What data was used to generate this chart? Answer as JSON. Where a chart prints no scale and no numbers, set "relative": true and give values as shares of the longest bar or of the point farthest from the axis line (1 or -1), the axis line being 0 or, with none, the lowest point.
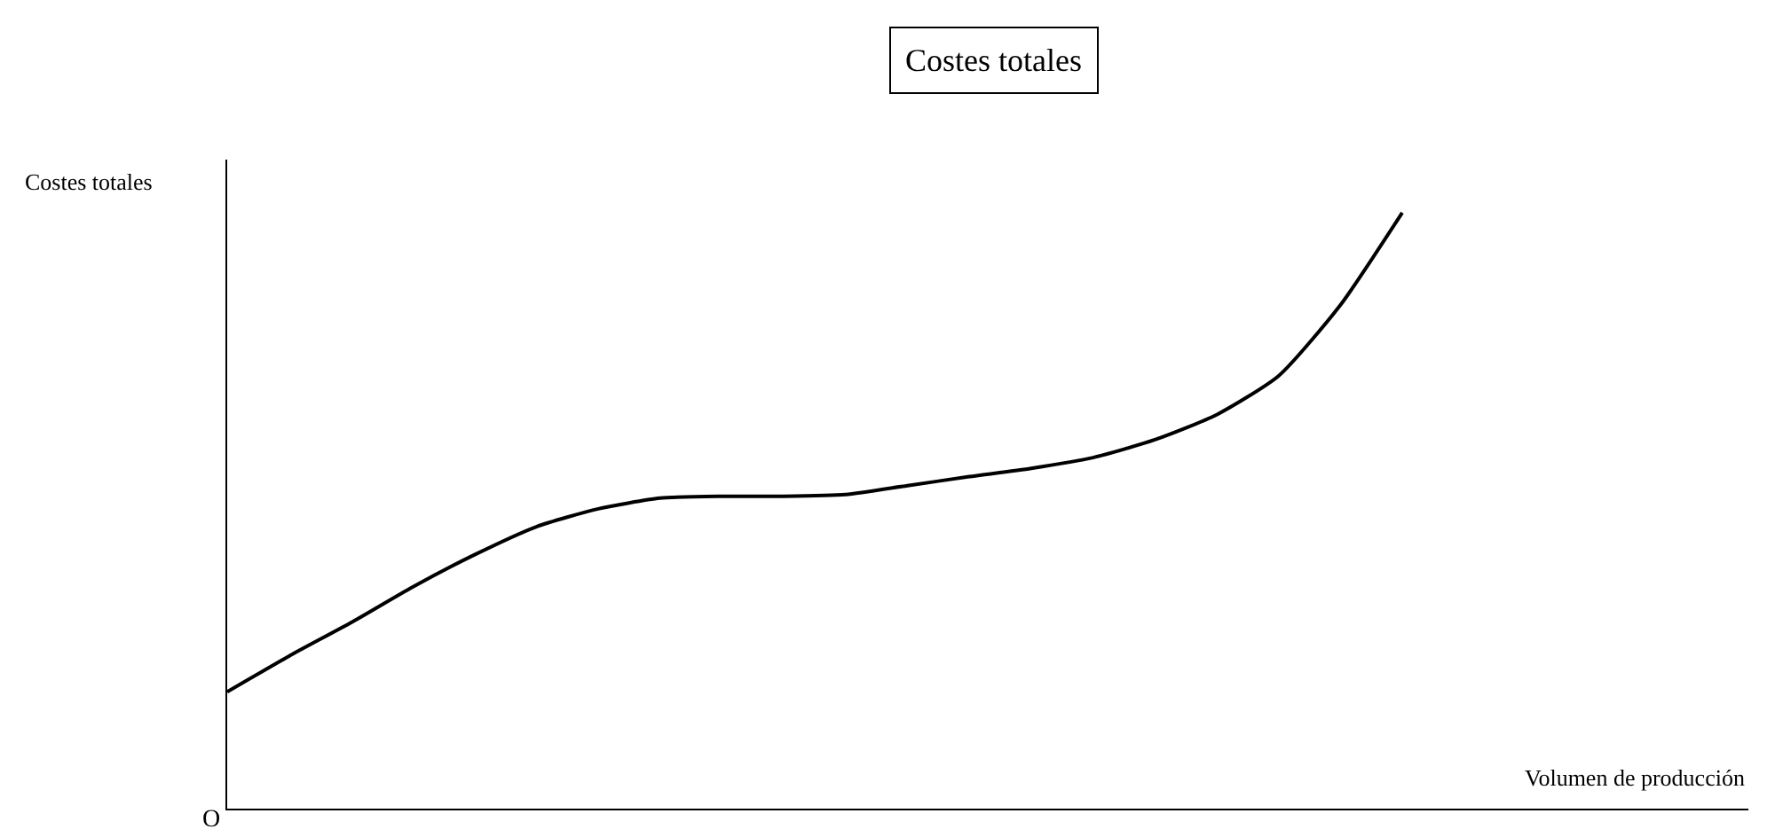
{
  "chart_data": {
    "type": "line",
    "relative": true,
    "title": "Costes totales",
    "xlabel": "Volumen de producción",
    "ylabel": "Costes totales",
    "annotations": [
      "O"
    ],
    "categories": [
      null,
      null,
      null,
      null,
      null,
      null,
      null,
      null,
      null,
      null,
      null,
      null,
      null,
      null,
      null,
      null,
      null,
      null,
      null,
      null
    ],
    "series": [
      {
        "color": "#000000",
        "values": [
          0.196,
          0.256,
          0.312,
          0.372,
          0.426,
          0.473,
          0.503,
          0.521,
          0.524,
          0.524,
          0.527,
          0.542,
          0.557,
          0.571,
          0.589,
          0.619,
          0.661,
          0.726,
          0.845,
          1
        ]
      }
    ],
    "marker": "none"
  }
}
